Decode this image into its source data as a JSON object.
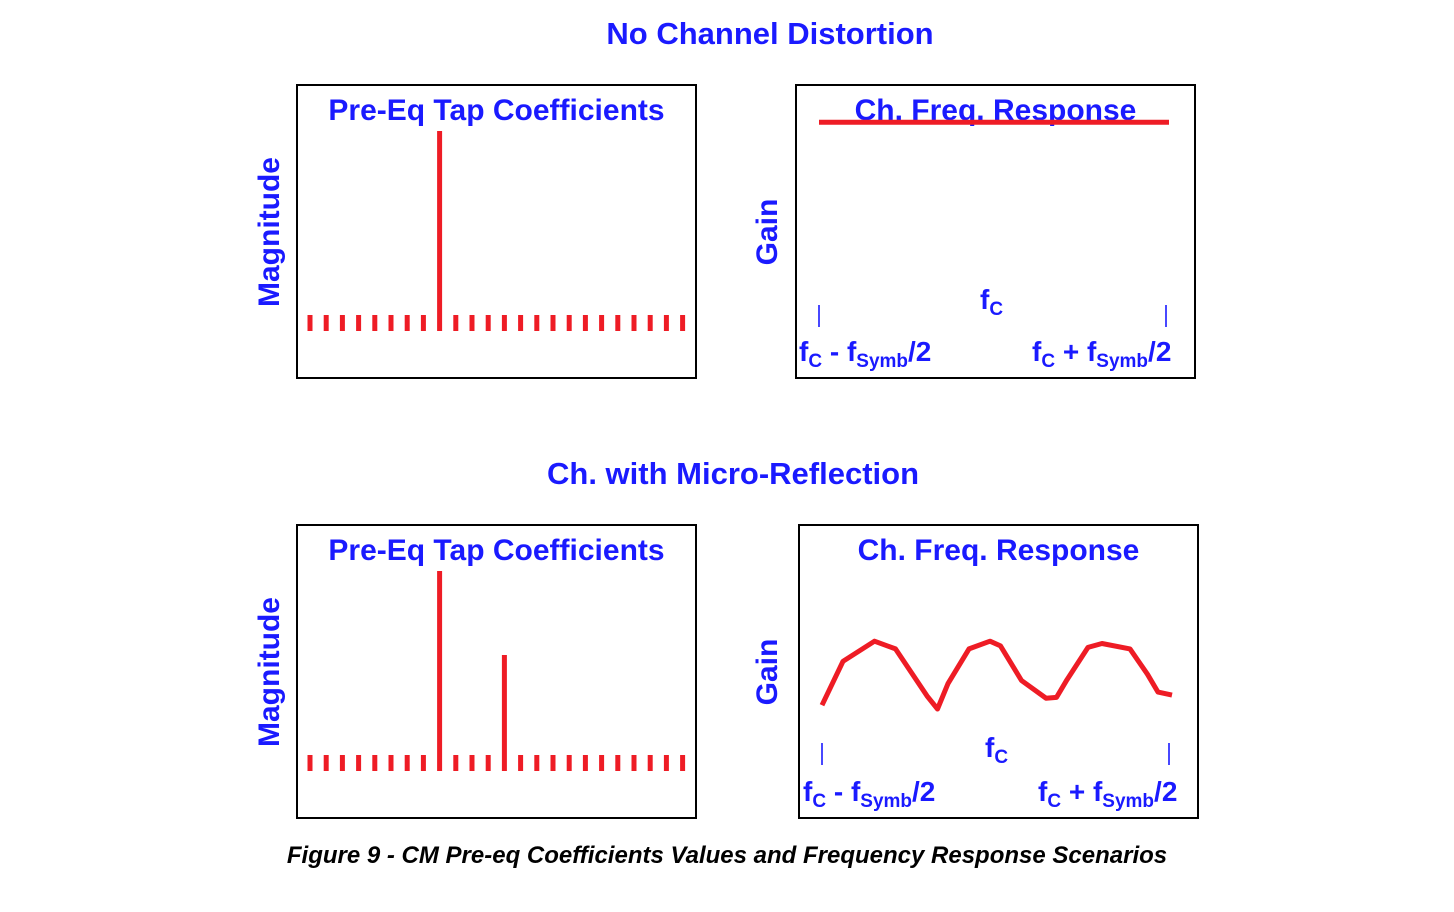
{
  "sections": [
    {
      "title": "No Channel Distortion",
      "taps_panel": {
        "title": "Pre-Eq Tap Coefficients",
        "ylabel": "Magnitude"
      },
      "freq_panel": {
        "title": "Ch. Freq. Response",
        "ylabel": "Gain",
        "center_label": {
          "main": "f",
          "sub": "C"
        },
        "left_label": {
          "f1": "f",
          "s1": "C",
          "mid": " - f",
          "s2": "Symb",
          "tail": "/2"
        },
        "right_label": {
          "f1": "f",
          "s1": "C",
          "mid": " + f",
          "s2": "Symb",
          "tail": "/2"
        }
      }
    },
    {
      "title": "Ch. with Micro-Reflection",
      "taps_panel": {
        "title": "Pre-Eq Tap Coefficients",
        "ylabel": "Magnitude"
      },
      "freq_panel": {
        "title": "Ch. Freq. Response",
        "ylabel": "Gain",
        "center_label": {
          "main": "f",
          "sub": "C"
        },
        "left_label": {
          "f1": "f",
          "s1": "C",
          "mid": " - f",
          "s2": "Symb",
          "tail": "/2"
        },
        "right_label": {
          "f1": "f",
          "s1": "C",
          "mid": " + f",
          "s2": "Symb",
          "tail": "/2"
        }
      }
    }
  ],
  "caption": "Figure 9 - CM Pre-eq Coefficients Values and Frequency Response Scenarios",
  "colors": {
    "accent": "#1a1aff",
    "trace": "#ee1c25"
  },
  "chart_data": [
    {
      "type": "bar",
      "title": "Pre-Eq Tap Coefficients",
      "ylabel": "Magnitude",
      "values": [
        0.08,
        0.08,
        0.08,
        0.08,
        0.08,
        0.08,
        0.08,
        0.08,
        1.0,
        0.08,
        0.08,
        0.08,
        0.08,
        0.08,
        0.08,
        0.08,
        0.08,
        0.08,
        0.08,
        0.08,
        0.08,
        0.08,
        0.08,
        0.08
      ]
    },
    {
      "type": "line",
      "title": "Ch. Freq. Response",
      "ylabel": "Gain",
      "x": [
        0,
        1
      ],
      "y": [
        0.8,
        0.8
      ]
    },
    {
      "type": "bar",
      "title": "Pre-Eq Tap Coefficients",
      "ylabel": "Magnitude",
      "values": [
        0.08,
        0.08,
        0.08,
        0.08,
        0.08,
        0.08,
        0.08,
        0.08,
        1.0,
        0.08,
        0.08,
        0.08,
        0.58,
        0.08,
        0.08,
        0.08,
        0.08,
        0.08,
        0.08,
        0.08,
        0.08,
        0.08,
        0.08,
        0.08
      ]
    },
    {
      "type": "line",
      "title": "Ch. Freq. Response",
      "ylabel": "Gain",
      "x": [
        0.0,
        0.06,
        0.15,
        0.21,
        0.3,
        0.33,
        0.36,
        0.42,
        0.48,
        0.51,
        0.57,
        0.64,
        0.67,
        0.7,
        0.76,
        0.8,
        0.88,
        0.93,
        0.96,
        1.0
      ],
      "y": [
        0.05,
        0.62,
        0.88,
        0.78,
        0.17,
        0.0,
        0.33,
        0.78,
        0.88,
        0.82,
        0.37,
        0.14,
        0.15,
        0.38,
        0.8,
        0.85,
        0.78,
        0.45,
        0.22,
        0.18
      ]
    }
  ]
}
